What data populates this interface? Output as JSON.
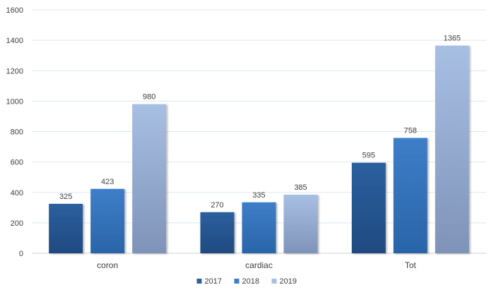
{
  "chart_data": {
    "type": "bar",
    "title": "",
    "xlabel": "",
    "ylabel": "",
    "categories": [
      "coron",
      "cardiac",
      "Tot"
    ],
    "series": [
      {
        "name": "2017",
        "values": [
          325,
          270,
          595
        ],
        "color_top": "#2c5f9e",
        "color_bottom": "#1f4a80"
      },
      {
        "name": "2018",
        "values": [
          423,
          335,
          758
        ],
        "color_top": "#3e7ec8",
        "color_bottom": "#2a64a8"
      },
      {
        "name": "2019",
        "values": [
          980,
          385,
          1365
        ],
        "color_top": "#a8bfe4",
        "color_bottom": "#7f93b8"
      }
    ],
    "ylim": [
      0,
      1600
    ],
    "yticks": [
      0,
      200,
      400,
      600,
      800,
      1000,
      1200,
      1400,
      1600
    ],
    "grid": true,
    "legend_position": "bottom-center",
    "data_labels": true
  }
}
